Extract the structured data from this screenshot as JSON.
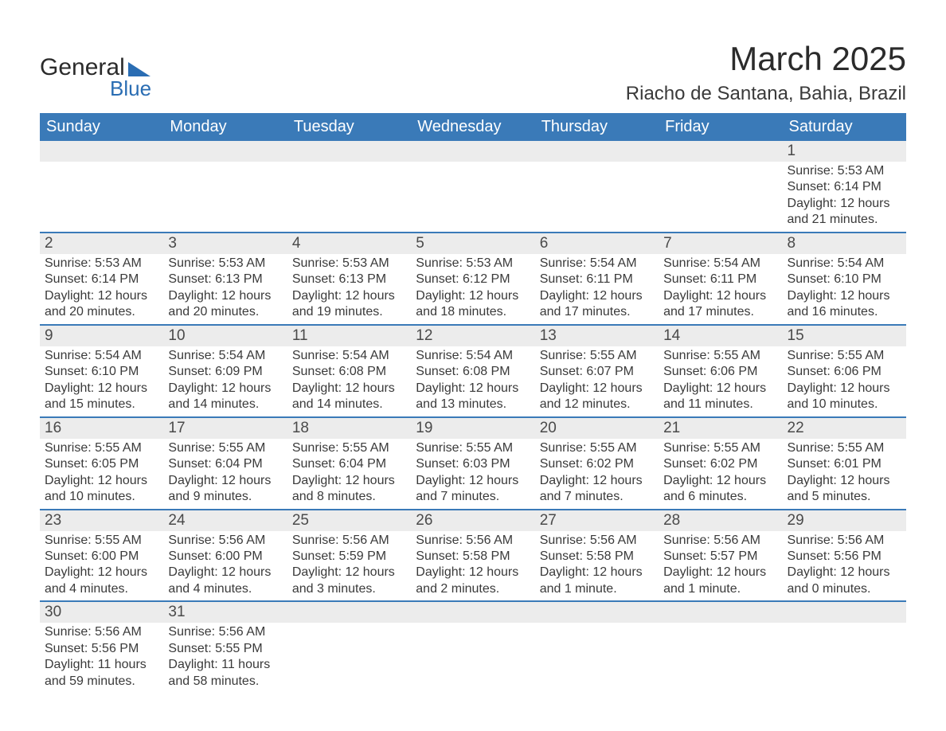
{
  "logo": {
    "general": "General",
    "blue": "Blue"
  },
  "header": {
    "month_title": "March 2025",
    "location": "Riacho de Santana, Bahia, Brazil"
  },
  "calendar": {
    "weekdays": [
      "Sunday",
      "Monday",
      "Tuesday",
      "Wednesday",
      "Thursday",
      "Friday",
      "Saturday"
    ],
    "header_bg": "#3a7ab8",
    "header_fg": "#ffffff",
    "daynum_bg": "#ececec",
    "row_border": "#3a7ab8",
    "text_color": "#3a3a3a",
    "weeks": [
      [
        {
          "blank": true
        },
        {
          "blank": true
        },
        {
          "blank": true
        },
        {
          "blank": true
        },
        {
          "blank": true
        },
        {
          "blank": true
        },
        {
          "n": "1",
          "sr": "Sunrise: 5:53 AM",
          "ss": "Sunset: 6:14 PM",
          "dl": "Daylight: 12 hours and 21 minutes."
        }
      ],
      [
        {
          "n": "2",
          "sr": "Sunrise: 5:53 AM",
          "ss": "Sunset: 6:14 PM",
          "dl": "Daylight: 12 hours and 20 minutes."
        },
        {
          "n": "3",
          "sr": "Sunrise: 5:53 AM",
          "ss": "Sunset: 6:13 PM",
          "dl": "Daylight: 12 hours and 20 minutes."
        },
        {
          "n": "4",
          "sr": "Sunrise: 5:53 AM",
          "ss": "Sunset: 6:13 PM",
          "dl": "Daylight: 12 hours and 19 minutes."
        },
        {
          "n": "5",
          "sr": "Sunrise: 5:53 AM",
          "ss": "Sunset: 6:12 PM",
          "dl": "Daylight: 12 hours and 18 minutes."
        },
        {
          "n": "6",
          "sr": "Sunrise: 5:54 AM",
          "ss": "Sunset: 6:11 PM",
          "dl": "Daylight: 12 hours and 17 minutes."
        },
        {
          "n": "7",
          "sr": "Sunrise: 5:54 AM",
          "ss": "Sunset: 6:11 PM",
          "dl": "Daylight: 12 hours and 17 minutes."
        },
        {
          "n": "8",
          "sr": "Sunrise: 5:54 AM",
          "ss": "Sunset: 6:10 PM",
          "dl": "Daylight: 12 hours and 16 minutes."
        }
      ],
      [
        {
          "n": "9",
          "sr": "Sunrise: 5:54 AM",
          "ss": "Sunset: 6:10 PM",
          "dl": "Daylight: 12 hours and 15 minutes."
        },
        {
          "n": "10",
          "sr": "Sunrise: 5:54 AM",
          "ss": "Sunset: 6:09 PM",
          "dl": "Daylight: 12 hours and 14 minutes."
        },
        {
          "n": "11",
          "sr": "Sunrise: 5:54 AM",
          "ss": "Sunset: 6:08 PM",
          "dl": "Daylight: 12 hours and 14 minutes."
        },
        {
          "n": "12",
          "sr": "Sunrise: 5:54 AM",
          "ss": "Sunset: 6:08 PM",
          "dl": "Daylight: 12 hours and 13 minutes."
        },
        {
          "n": "13",
          "sr": "Sunrise: 5:55 AM",
          "ss": "Sunset: 6:07 PM",
          "dl": "Daylight: 12 hours and 12 minutes."
        },
        {
          "n": "14",
          "sr": "Sunrise: 5:55 AM",
          "ss": "Sunset: 6:06 PM",
          "dl": "Daylight: 12 hours and 11 minutes."
        },
        {
          "n": "15",
          "sr": "Sunrise: 5:55 AM",
          "ss": "Sunset: 6:06 PM",
          "dl": "Daylight: 12 hours and 10 minutes."
        }
      ],
      [
        {
          "n": "16",
          "sr": "Sunrise: 5:55 AM",
          "ss": "Sunset: 6:05 PM",
          "dl": "Daylight: 12 hours and 10 minutes."
        },
        {
          "n": "17",
          "sr": "Sunrise: 5:55 AM",
          "ss": "Sunset: 6:04 PM",
          "dl": "Daylight: 12 hours and 9 minutes."
        },
        {
          "n": "18",
          "sr": "Sunrise: 5:55 AM",
          "ss": "Sunset: 6:04 PM",
          "dl": "Daylight: 12 hours and 8 minutes."
        },
        {
          "n": "19",
          "sr": "Sunrise: 5:55 AM",
          "ss": "Sunset: 6:03 PM",
          "dl": "Daylight: 12 hours and 7 minutes."
        },
        {
          "n": "20",
          "sr": "Sunrise: 5:55 AM",
          "ss": "Sunset: 6:02 PM",
          "dl": "Daylight: 12 hours and 7 minutes."
        },
        {
          "n": "21",
          "sr": "Sunrise: 5:55 AM",
          "ss": "Sunset: 6:02 PM",
          "dl": "Daylight: 12 hours and 6 minutes."
        },
        {
          "n": "22",
          "sr": "Sunrise: 5:55 AM",
          "ss": "Sunset: 6:01 PM",
          "dl": "Daylight: 12 hours and 5 minutes."
        }
      ],
      [
        {
          "n": "23",
          "sr": "Sunrise: 5:55 AM",
          "ss": "Sunset: 6:00 PM",
          "dl": "Daylight: 12 hours and 4 minutes."
        },
        {
          "n": "24",
          "sr": "Sunrise: 5:56 AM",
          "ss": "Sunset: 6:00 PM",
          "dl": "Daylight: 12 hours and 4 minutes."
        },
        {
          "n": "25",
          "sr": "Sunrise: 5:56 AM",
          "ss": "Sunset: 5:59 PM",
          "dl": "Daylight: 12 hours and 3 minutes."
        },
        {
          "n": "26",
          "sr": "Sunrise: 5:56 AM",
          "ss": "Sunset: 5:58 PM",
          "dl": "Daylight: 12 hours and 2 minutes."
        },
        {
          "n": "27",
          "sr": "Sunrise: 5:56 AM",
          "ss": "Sunset: 5:58 PM",
          "dl": "Daylight: 12 hours and 1 minute."
        },
        {
          "n": "28",
          "sr": "Sunrise: 5:56 AM",
          "ss": "Sunset: 5:57 PM",
          "dl": "Daylight: 12 hours and 1 minute."
        },
        {
          "n": "29",
          "sr": "Sunrise: 5:56 AM",
          "ss": "Sunset: 5:56 PM",
          "dl": "Daylight: 12 hours and 0 minutes."
        }
      ],
      [
        {
          "n": "30",
          "sr": "Sunrise: 5:56 AM",
          "ss": "Sunset: 5:56 PM",
          "dl": "Daylight: 11 hours and 59 minutes."
        },
        {
          "n": "31",
          "sr": "Sunrise: 5:56 AM",
          "ss": "Sunset: 5:55 PM",
          "dl": "Daylight: 11 hours and 58 minutes."
        },
        {
          "blank": true
        },
        {
          "blank": true
        },
        {
          "blank": true
        },
        {
          "blank": true
        },
        {
          "blank": true
        }
      ]
    ]
  }
}
